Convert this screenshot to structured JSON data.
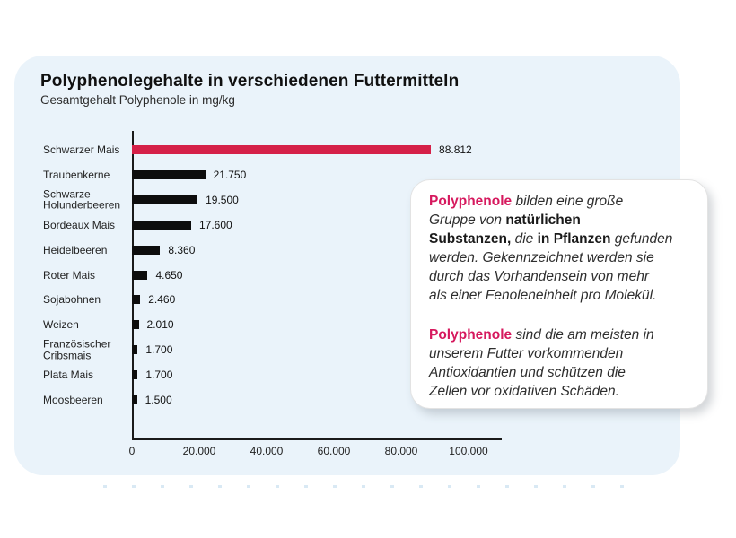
{
  "header": {
    "title": "Polyphenolegehalte in verschiedenen Futtermitteln",
    "subtitle": "Gesamtgehalt Polyphenole in mg/kg"
  },
  "colors": {
    "card_bg": "#EAF3FA",
    "bar_default": "#0D0D0D",
    "bar_highlight": "#D52048",
    "brand_text": "#D6195E",
    "axis": "#1A1A1A"
  },
  "chart_data": {
    "type": "bar",
    "orientation": "horizontal",
    "title": "Polyphenolegehalte in verschiedenen Futtermitteln",
    "ylabel": "",
    "xlabel": "Gesamtgehalt Polyphenole in mg/kg",
    "grid": false,
    "legend": null,
    "xlim": [
      0,
      100000
    ],
    "x_tick_values": [
      0,
      20000,
      40000,
      60000,
      80000,
      100000
    ],
    "x_tick_labels": [
      "0",
      "20.000",
      "40.000",
      "60.000",
      "80.000",
      "100.000"
    ],
    "categories": [
      "Schwarzer Mais",
      "Traubenkerne",
      "Schwarze\nHolunderbeeren",
      "Bordeaux Mais",
      "Heidelbeeren",
      "Roter Mais",
      "Sojabohnen",
      "Weizen",
      "Französischer\nCribsmais",
      "Plata Mais",
      "Moosbeeren"
    ],
    "values": [
      88812,
      21750,
      19500,
      17600,
      8360,
      4650,
      2460,
      2010,
      1700,
      1700,
      1500
    ],
    "value_labels": [
      "88.812",
      "21.750",
      "19.500",
      "17.600",
      "8.360",
      "4.650",
      "2.460",
      "2.010",
      "1.700",
      "1.700",
      "1.500"
    ],
    "highlight_index": 0
  },
  "infobox": {
    "paragraphs": [
      {
        "lines": [
          [
            {
              "t": "Polyphenole",
              "s": "brand"
            },
            {
              "t": " bilden eine große",
              "s": "em"
            }
          ],
          [
            {
              "t": "Gruppe von ",
              "s": "em"
            },
            {
              "t": "natürlichen",
              "s": "strong"
            }
          ],
          [
            {
              "t": "Substanzen,",
              "s": "strong"
            },
            {
              "t": " die ",
              "s": "em"
            },
            {
              "t": "in Pflanzen",
              "s": "strong"
            },
            {
              "t": " gefunden",
              "s": "em"
            }
          ],
          [
            {
              "t": "werden. Gekennzeichnet werden sie",
              "s": "em"
            }
          ],
          [
            {
              "t": "durch das Vorhandensein von mehr",
              "s": "em"
            }
          ],
          [
            {
              "t": "als einer Fenoleneinheit pro Molekül.",
              "s": "em"
            }
          ]
        ]
      },
      {
        "lines": [
          [
            {
              "t": "Polyphenole",
              "s": "brand"
            },
            {
              "t": " sind die am meisten in",
              "s": "em"
            }
          ],
          [
            {
              "t": "unserem Futter vorkommenden",
              "s": "em"
            }
          ],
          [
            {
              "t": "Antioxidantien und schützen die",
              "s": "em"
            }
          ],
          [
            {
              "t": "Zellen vor oxidativen Schäden.",
              "s": "em"
            }
          ]
        ]
      }
    ]
  }
}
